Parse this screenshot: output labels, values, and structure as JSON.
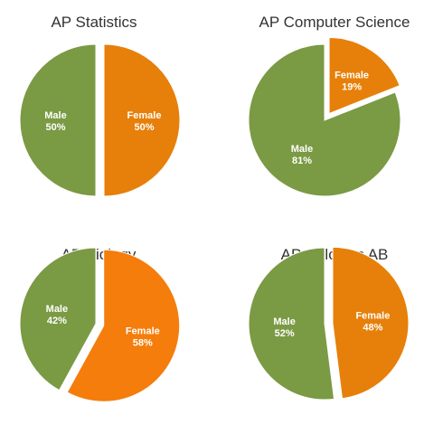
{
  "colors": {
    "male": "#7a9a44",
    "female": "#e6800a",
    "text": "#333333"
  },
  "chart_data": [
    {
      "type": "pie",
      "title": "AP Statistics",
      "slices": [
        {
          "label": "Female",
          "value": 50,
          "pct_text": "50%",
          "color": "#e6800a",
          "exploded": true
        },
        {
          "label": "Male",
          "value": 50,
          "pct_text": "50%",
          "color": "#7a9a44",
          "exploded": false
        }
      ]
    },
    {
      "type": "pie",
      "title": "AP Computer Science",
      "slices": [
        {
          "label": "Female",
          "value": 19,
          "pct_text": "19%",
          "color": "#e6800a",
          "exploded": true
        },
        {
          "label": "Male",
          "value": 81,
          "pct_text": "81%",
          "color": "#7a9a44",
          "exploded": false
        }
      ]
    },
    {
      "type": "pie",
      "title": "AP Biology",
      "slices": [
        {
          "label": "Female",
          "value": 58,
          "pct_text": "58%",
          "color": "#f47d0c",
          "exploded": true
        },
        {
          "label": "Male",
          "value": 42,
          "pct_text": "42%",
          "color": "#7a9a44",
          "exploded": false
        }
      ]
    },
    {
      "type": "pie",
      "title": "AP Calculus AB",
      "slices": [
        {
          "label": "Female",
          "value": 48,
          "pct_text": "48%",
          "color": "#e6800a",
          "exploded": true
        },
        {
          "label": "Male",
          "value": 52,
          "pct_text": "52%",
          "color": "#7a9a44",
          "exploded": false
        }
      ]
    }
  ]
}
